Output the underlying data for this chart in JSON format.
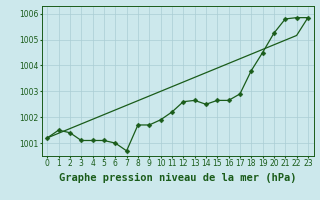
{
  "title": "Graphe pression niveau de la mer (hPa)",
  "bg_color": "#cce8ec",
  "grid_color": "#aacdd4",
  "line_color": "#1a5c1a",
  "x_labels": [
    "0",
    "1",
    "2",
    "3",
    "4",
    "5",
    "6",
    "7",
    "8",
    "9",
    "10",
    "11",
    "12",
    "13",
    "14",
    "15",
    "16",
    "17",
    "18",
    "19",
    "20",
    "21",
    "22",
    "23"
  ],
  "y_data": [
    1001.2,
    1001.5,
    1001.4,
    1001.1,
    1001.1,
    1001.1,
    1001.0,
    1000.7,
    1001.7,
    1001.7,
    1001.9,
    1002.2,
    1002.6,
    1002.65,
    1002.5,
    1002.65,
    1002.65,
    1002.9,
    1003.8,
    1004.5,
    1005.25,
    1005.8,
    1005.85,
    1005.85
  ],
  "trend_data": [
    1001.2,
    1001.38,
    1001.56,
    1001.74,
    1001.92,
    1002.1,
    1002.28,
    1002.46,
    1002.64,
    1002.82,
    1003.0,
    1003.18,
    1003.36,
    1003.54,
    1003.72,
    1003.9,
    1004.08,
    1004.26,
    1004.44,
    1004.62,
    1004.8,
    1004.98,
    1005.16,
    1005.85
  ],
  "ylim": [
    1000.5,
    1006.3
  ],
  "yticks": [
    1001,
    1002,
    1003,
    1004,
    1005,
    1006
  ],
  "marker": "D",
  "marker_size": 2.5,
  "title_fontsize": 7.5,
  "tick_fontsize": 5.5
}
